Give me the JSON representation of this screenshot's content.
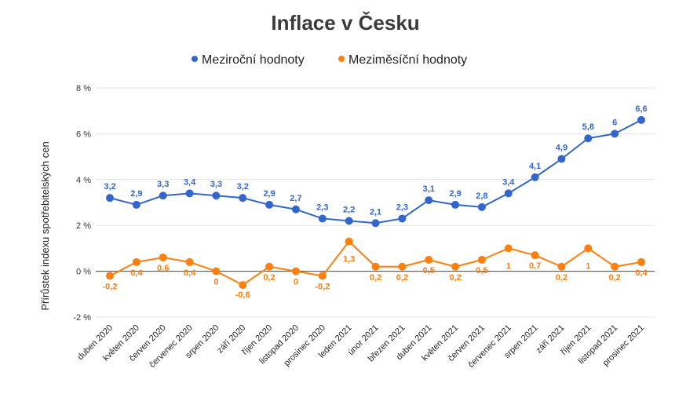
{
  "chart_data": {
    "type": "line",
    "title": "Inflace v Česku",
    "ylabel": "Přírůstek indexu spotřebitelských cen",
    "xlabel": "",
    "ylim": [
      -2,
      8
    ],
    "yticks": [
      {
        "value": 8,
        "label": "8 %"
      },
      {
        "value": 6,
        "label": "6 %"
      },
      {
        "value": 4,
        "label": "4 %"
      },
      {
        "value": 2,
        "label": "2 %"
      },
      {
        "value": 0,
        "label": "0 %"
      },
      {
        "value": -2,
        "label": "-2 %"
      }
    ],
    "grid": true,
    "legend_position": "top-center",
    "categories": [
      "duben 2020",
      "květen 2020",
      "červen 2020",
      "červenec 2020",
      "srpen 2020",
      "září 2020",
      "říjen 2020",
      "listopad 2020",
      "prosinec 2020",
      "leden 2021",
      "únor 2021",
      "březen 2021",
      "duben 2021",
      "květen 2021",
      "červen 2021",
      "červenec 2021",
      "srpen 2021",
      "září 2021",
      "říjen 2021",
      "listopad 2021",
      "prosinec 2021"
    ],
    "series": [
      {
        "name": "Meziroční hodnoty",
        "color": "#3366cc",
        "values": [
          3.2,
          2.9,
          3.3,
          3.4,
          3.3,
          3.2,
          2.9,
          2.7,
          2.3,
          2.2,
          2.1,
          2.3,
          3.1,
          2.9,
          2.8,
          3.4,
          4.1,
          4.9,
          5.8,
          6,
          6.6
        ],
        "labels": [
          "3,2",
          "2,9",
          "3,3",
          "3,4",
          "3,3",
          "3,2",
          "2,9",
          "2,7",
          "2,3",
          "2,2",
          "2,1",
          "2,3",
          "3,1",
          "2,9",
          "2,8",
          "3,4",
          "4,1",
          "4,9",
          "5,8",
          "6",
          "6,6"
        ]
      },
      {
        "name": "Meziměsíční hodnoty",
        "color": "#ff7f0e",
        "values": [
          -0.2,
          0.4,
          0.6,
          0.4,
          0,
          -0.6,
          0.2,
          0,
          -0.2,
          1.3,
          0.2,
          0.2,
          0.5,
          0.2,
          0.5,
          1,
          0.7,
          0.2,
          1,
          0.2,
          0.4
        ],
        "labels": [
          "-0,2",
          "0,4",
          "0,6",
          "0,4",
          "0",
          "-0,6",
          "0,2",
          "0",
          "-0,2",
          "1,3",
          "0,2",
          "0,2",
          "0,5",
          "0,2",
          "0,5",
          "1",
          "0,7",
          "0,2",
          "1",
          "0,2",
          "0,4"
        ]
      }
    ]
  }
}
